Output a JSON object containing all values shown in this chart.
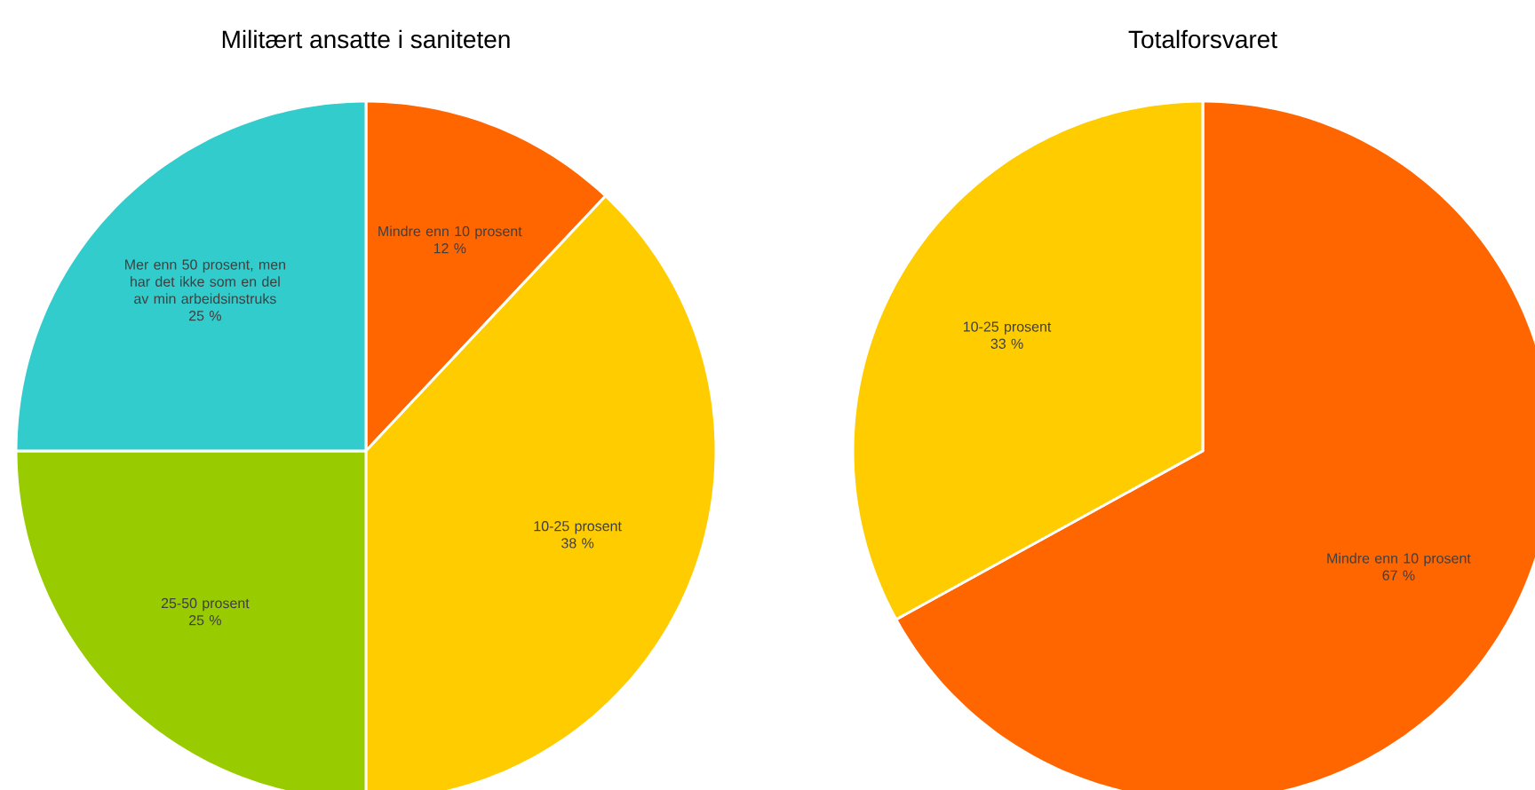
{
  "chart_data": [
    {
      "type": "pie",
      "title": "Militært ansatte i saniteten",
      "categories": [
        "Mindre enn 10 prosent",
        "10-25 prosent",
        "25-50 prosent",
        "Mer enn 50 prosent, men har det ikke som en del av min arbeidsinstruks"
      ],
      "values": [
        12,
        38,
        25,
        25
      ],
      "colors": [
        "#ff6600",
        "#ffcc00",
        "#99cc00",
        "#33cccc"
      ],
      "value_labels": [
        "12 %",
        "38 %",
        "25 %",
        "25 %"
      ]
    },
    {
      "type": "pie",
      "title": "Totalforsvaret",
      "categories": [
        "Mindre enn 10 prosent",
        "10-25 prosent"
      ],
      "values": [
        67,
        33
      ],
      "colors": [
        "#ff6600",
        "#ffcc00"
      ],
      "value_labels": [
        "67 %",
        "33 %"
      ]
    }
  ]
}
